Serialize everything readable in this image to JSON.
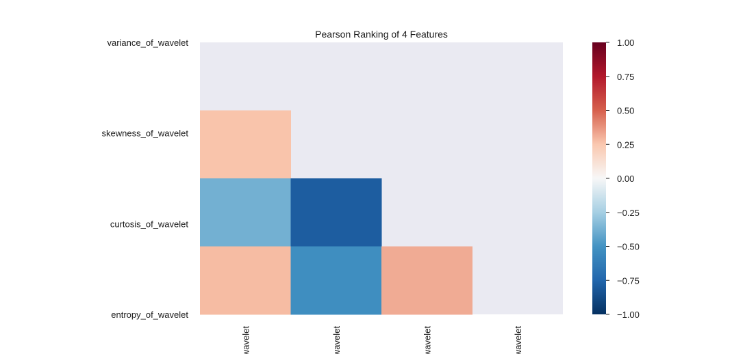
{
  "chart_data": {
    "type": "heatmap",
    "title": "Pearson Ranking of 4 Features",
    "features": [
      "variance_of_wavelet",
      "skewness_of_wavelet",
      "curtosis_of_wavelet",
      "entropy_of_wavelet"
    ],
    "x_tick_labels": [
      "wavelet",
      "wavelet",
      "wavelet",
      "wavelet"
    ],
    "mask": "upper-triangle-including-diagonal",
    "values": [
      [
        null,
        null,
        null,
        null
      ],
      [
        0.26,
        null,
        null,
        null
      ],
      [
        -0.38,
        -0.79,
        null,
        null
      ],
      [
        0.28,
        -0.53,
        0.32,
        null
      ]
    ],
    "colorbar": {
      "colormap": "RdBu_r",
      "vmin": -1.0,
      "vmax": 1.0,
      "tick_labels": [
        "1.00",
        "0.75",
        "0.50",
        "0.25",
        "0.00",
        "−0.25",
        "−0.50",
        "−0.75",
        "−1.00"
      ],
      "tick_values": [
        1.0,
        0.75,
        0.5,
        0.25,
        0.0,
        -0.25,
        -0.5,
        -0.75,
        -1.0
      ]
    },
    "background_color": "#eaeaf2",
    "grid": false
  }
}
